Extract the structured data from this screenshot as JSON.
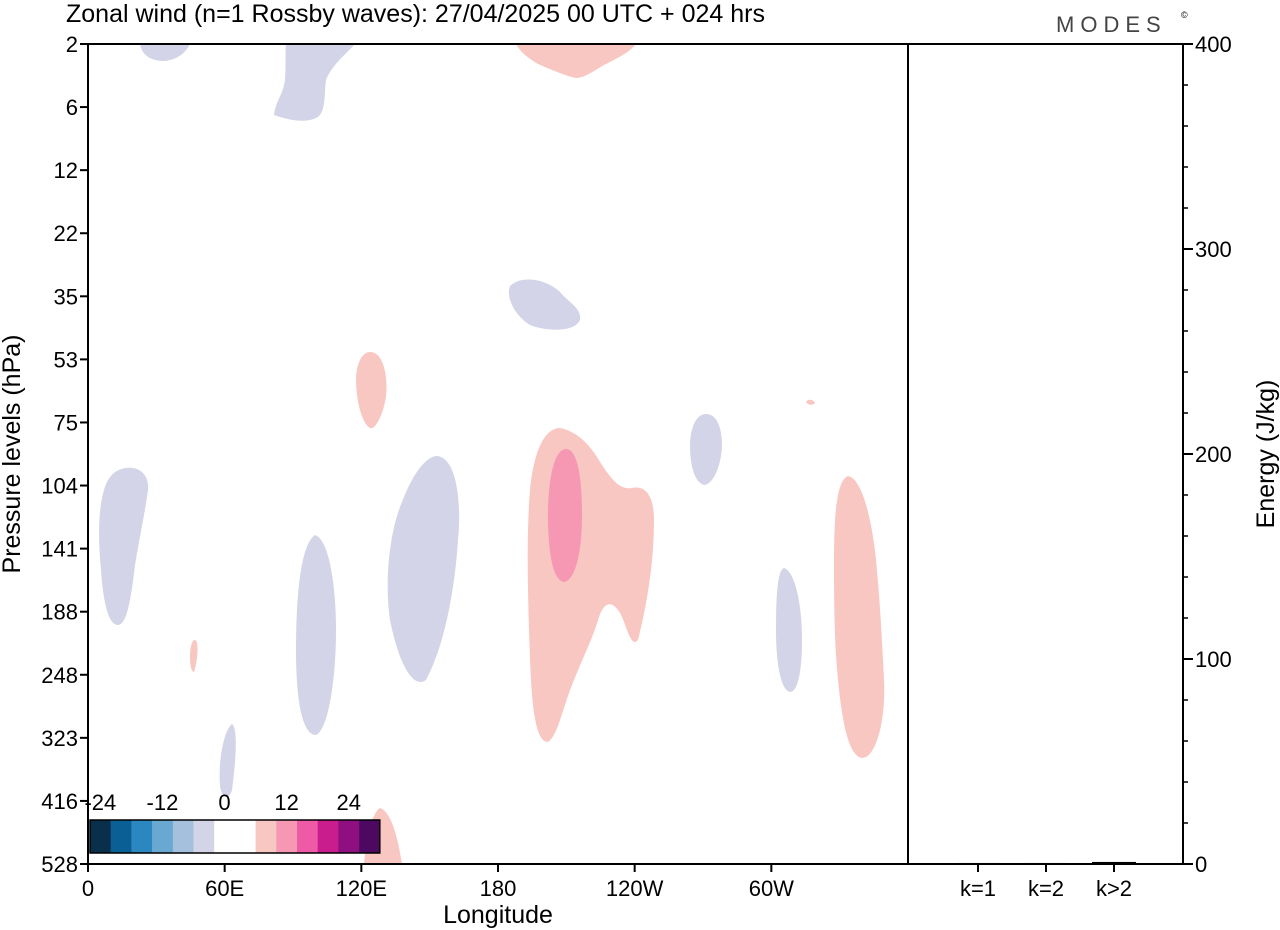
{
  "title": "Zonal wind (n=1 Rossby waves):  27/04/2025  00 UTC  + 024 hrs",
  "brand": "MODES",
  "brand_mark": "©",
  "chart_data": [
    {
      "type": "heatmap",
      "variable": "Zonal wind (n=1 Rossby waves)",
      "xlabel": "Longitude",
      "ylabel": "Pressure levels (hPa)",
      "x_ticks": [
        "0",
        "60E",
        "120E",
        "180",
        "120W",
        "60W"
      ],
      "x_tick_values_deg": [
        0,
        60,
        120,
        180,
        240,
        300
      ],
      "xlim_deg": [
        0,
        360
      ],
      "y_ticks": [
        "2",
        "6",
        "12",
        "22",
        "35",
        "53",
        "75",
        "104",
        "141",
        "188",
        "248",
        "323",
        "416",
        "528"
      ],
      "y_scale": "model-level index (tick labels in hPa, top = 2, bottom = 528)",
      "colorbar": {
        "tick_labels": [
          "-24",
          "-12",
          "0",
          "12",
          "24"
        ],
        "tick_values": [
          -24,
          -12,
          0,
          12,
          24
        ],
        "colors": [
          "#08304b",
          "#0a5f95",
          "#2b87bf",
          "#68a8d1",
          "#a5c0dc",
          "#d3d4e7",
          "#ffffff",
          "#ffffff",
          "#f9c7c2",
          "#f698b4",
          "#ee5aa6",
          "#c91d8d",
          "#8e0f80",
          "#4d0862"
        ],
        "level_step": 4
      },
      "features": [
        {
          "sign": "negative",
          "class": "-4 to 0",
          "lon": [
            5,
            25
          ],
          "levels_hPa": [
            "104",
            "188"
          ]
        },
        {
          "sign": "negative",
          "class": "-4 to 0",
          "lon": [
            22,
            35
          ],
          "levels_hPa": [
            "2",
            "2"
          ]
        },
        {
          "sign": "negative",
          "class": "-4 to 0",
          "lon": [
            82,
            105
          ],
          "levels_hPa": [
            "2",
            "6"
          ]
        },
        {
          "sign": "negative",
          "class": "-4 to 0",
          "lon": [
            92,
            110
          ],
          "levels_hPa": [
            "141",
            "323"
          ]
        },
        {
          "sign": "negative",
          "class": "-4 to 0",
          "lon": [
            130,
            160
          ],
          "levels_hPa": [
            "104",
            "248"
          ]
        },
        {
          "sign": "negative",
          "class": "-4 to 0",
          "lon": [
            185,
            215
          ],
          "levels_hPa": [
            "35",
            "35"
          ]
        },
        {
          "sign": "negative",
          "class": "-4 to 0",
          "lon": [
            264,
            278
          ],
          "levels_hPa": [
            "75",
            "104"
          ]
        },
        {
          "sign": "negative",
          "class": "-4 to 0",
          "lon": [
            302,
            314
          ],
          "levels_hPa": [
            "188",
            "248"
          ]
        },
        {
          "sign": "negative",
          "class": "-4 to 0",
          "lon": [
            58,
            66
          ],
          "levels_hPa": [
            "323",
            "416"
          ]
        },
        {
          "sign": "positive",
          "class": "0 to 4",
          "lon": [
            188,
            250
          ],
          "levels_hPa": [
            "75",
            "323"
          ]
        },
        {
          "sign": "positive",
          "class": "4 to 8",
          "lon": [
            202,
            217
          ],
          "levels_hPa": [
            "104",
            "141"
          ]
        },
        {
          "sign": "positive",
          "class": "0 to 4",
          "lon": [
            329,
            350
          ],
          "levels_hPa": [
            "104",
            "323"
          ]
        },
        {
          "sign": "positive",
          "class": "0 to 4",
          "lon": [
            118,
            132
          ],
          "levels_hPa": [
            "53",
            "75"
          ]
        },
        {
          "sign": "positive",
          "class": "0 to 4",
          "lon": [
            186,
            240
          ],
          "levels_hPa": [
            "2",
            "2"
          ]
        },
        {
          "sign": "positive",
          "class": "0 to 4",
          "lon": [
            121,
            137
          ],
          "levels_hPa": [
            "416",
            "528"
          ]
        },
        {
          "sign": "positive",
          "class": "0 to 4",
          "lon": [
            44,
            48
          ],
          "levels_hPa": [
            "248",
            "248"
          ]
        },
        {
          "sign": "positive",
          "class": "0 to 4",
          "lon": [
            318,
            320
          ],
          "levels_hPa": [
            "75",
            "75"
          ]
        }
      ]
    },
    {
      "type": "bar",
      "categories": [
        "k=1",
        "k=2",
        "k>2"
      ],
      "values": [
        0.5,
        0.5,
        1
      ],
      "ylabel": "Energy (J/kg)",
      "ylim": [
        0,
        400
      ],
      "y_ticks": [
        "0",
        "100",
        "200",
        "300",
        "400"
      ],
      "y_tick_values": [
        0,
        100,
        200,
        300,
        400
      ]
    }
  ]
}
